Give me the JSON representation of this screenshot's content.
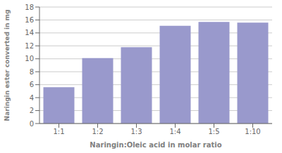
{
  "chart_data": {
    "type": "bar",
    "categories": [
      "1:1",
      "1:2",
      "1:3",
      "1:4",
      "1:5",
      "1:10"
    ],
    "values": [
      5.6,
      10.1,
      11.8,
      15.1,
      15.7,
      15.6
    ],
    "color": "#9999cc",
    "xlabel": "Naringin:Oleic acid in molar ratio",
    "ylabel": "Naringin ester converted in mg",
    "ylim": [
      0,
      18
    ],
    "yticks": [
      0,
      2,
      4,
      6,
      8,
      10,
      12,
      14,
      16,
      18
    ],
    "grid": true
  }
}
